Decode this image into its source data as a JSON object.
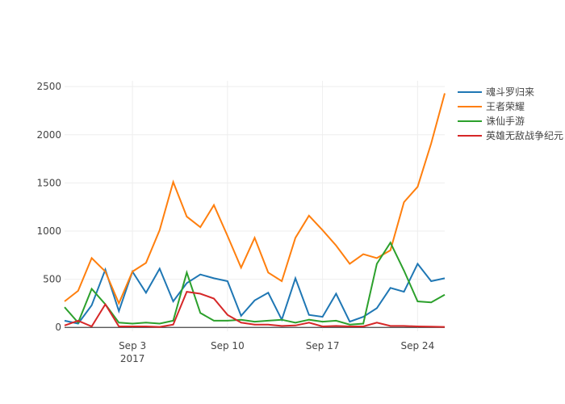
{
  "chart_data": {
    "type": "line",
    "x": [
      "2017-08-29",
      "2017-08-30",
      "2017-08-31",
      "2017-09-01",
      "2017-09-02",
      "2017-09-03",
      "2017-09-04",
      "2017-09-05",
      "2017-09-06",
      "2017-09-07",
      "2017-09-08",
      "2017-09-09",
      "2017-09-10",
      "2017-09-11",
      "2017-09-12",
      "2017-09-13",
      "2017-09-14",
      "2017-09-15",
      "2017-09-16",
      "2017-09-17",
      "2017-09-18",
      "2017-09-19",
      "2017-09-20",
      "2017-09-21",
      "2017-09-22",
      "2017-09-23",
      "2017-09-24",
      "2017-09-25",
      "2017-09-26"
    ],
    "series": [
      {
        "name": "魂斗罗归来",
        "color": "#1f77b4",
        "values": [
          70,
          40,
          230,
          600,
          170,
          580,
          360,
          610,
          270,
          460,
          550,
          510,
          480,
          120,
          280,
          360,
          80,
          510,
          130,
          110,
          350,
          60,
          110,
          200,
          410,
          370,
          660,
          480,
          510
        ]
      },
      {
        "name": "王者荣耀",
        "color": "#ff7f0e",
        "values": [
          270,
          380,
          720,
          580,
          250,
          580,
          670,
          1010,
          1510,
          1150,
          1040,
          1270,
          950,
          620,
          930,
          570,
          480,
          930,
          1160,
          1010,
          850,
          660,
          760,
          720,
          800,
          1300,
          1460,
          1910,
          2430
        ]
      },
      {
        "name": "诛仙手游",
        "color": "#2ca02c",
        "values": [
          210,
          50,
          400,
          240,
          50,
          40,
          50,
          40,
          70,
          570,
          150,
          70,
          70,
          80,
          60,
          70,
          80,
          50,
          80,
          60,
          70,
          30,
          40,
          660,
          880,
          590,
          270,
          260,
          340
        ]
      },
      {
        "name": "英雄无敌战争纪元",
        "color": "#d62728",
        "values": [
          20,
          70,
          10,
          240,
          10,
          10,
          10,
          5,
          30,
          370,
          350,
          300,
          130,
          50,
          30,
          30,
          15,
          20,
          50,
          10,
          15,
          10,
          10,
          50,
          15,
          15,
          10,
          8,
          5
        ]
      }
    ],
    "xlim": [
      "2017-08-29",
      "2017-09-26"
    ],
    "xticks": [
      {
        "value": "2017-09-03",
        "label": "Sep 3\n2017"
      },
      {
        "value": "2017-09-10",
        "label": "Sep 10"
      },
      {
        "value": "2017-09-17",
        "label": "Sep 17"
      },
      {
        "value": "2017-09-24",
        "label": "Sep 24"
      }
    ],
    "ylim": [
      -40,
      2560
    ],
    "yticks": [
      0,
      500,
      1000,
      1500,
      2000,
      2500
    ],
    "grid": true,
    "legend": "right"
  }
}
